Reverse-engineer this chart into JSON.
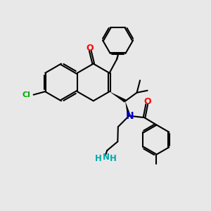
{
  "bg_color": "#e8e8e8",
  "bond_color": "#000000",
  "o_color": "#ff0000",
  "n_color": "#0000cc",
  "cl_color": "#00aa00",
  "nh2_color": "#00aaaa",
  "lw": 1.5,
  "xlim": [
    0,
    10
  ],
  "ylim": [
    0,
    10
  ]
}
